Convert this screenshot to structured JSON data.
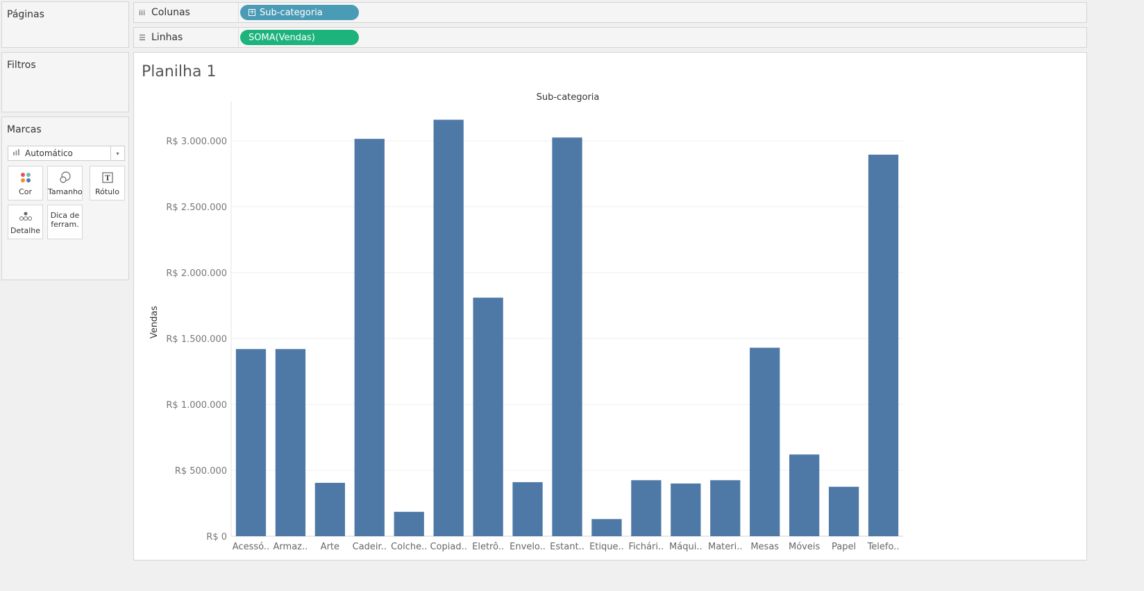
{
  "panels": {
    "pages": "Páginas",
    "filters": "Filtros",
    "marks": "Marcas"
  },
  "marks": {
    "type": "Automático",
    "buttons": {
      "color": "Cor",
      "size": "Tamanho",
      "label": "Rótulo",
      "detail": "Detalhe",
      "tooltip_line1": "Dica de",
      "tooltip_line2": "ferram."
    }
  },
  "shelves": {
    "columns": {
      "label": "Colunas",
      "pill": "Sub-categoria",
      "pill_color": "#4a9bb5"
    },
    "rows": {
      "label": "Linhas",
      "pill": "SOMA(Vendas)",
      "pill_color": "#1db37c"
    }
  },
  "sheet": {
    "title": "Planilha 1"
  },
  "chart_data": {
    "type": "bar",
    "title": "Sub-categoria",
    "xlabel": "",
    "ylabel": "Vendas",
    "ylim": [
      0,
      3300000
    ],
    "yticks": [
      0,
      500000,
      1000000,
      1500000,
      2000000,
      2500000,
      3000000
    ],
    "ytick_labels": [
      "R$ 0",
      "R$ 500.000",
      "R$ 1.000.000",
      "R$ 1.500.000",
      "R$ 2.000.000",
      "R$ 2.500.000",
      "R$ 3.000.000"
    ],
    "categories": [
      "Acessó..",
      "Armaz..",
      "Arte",
      "Cadeir..",
      "Colche..",
      "Copiad..",
      "Eletrô..",
      "Envelo..",
      "Estant..",
      "Etique..",
      "Fichári..",
      "Máqui..",
      "Materi..",
      "Mesas",
      "Móveis",
      "Papel",
      "Telefo.."
    ],
    "values": [
      1420000,
      1420000,
      405000,
      3015000,
      185000,
      3160000,
      1810000,
      410000,
      3025000,
      130000,
      425000,
      400000,
      425000,
      1430000,
      620000,
      375000,
      2895000
    ],
    "bar_color": "#4e79a7",
    "grid": true
  }
}
